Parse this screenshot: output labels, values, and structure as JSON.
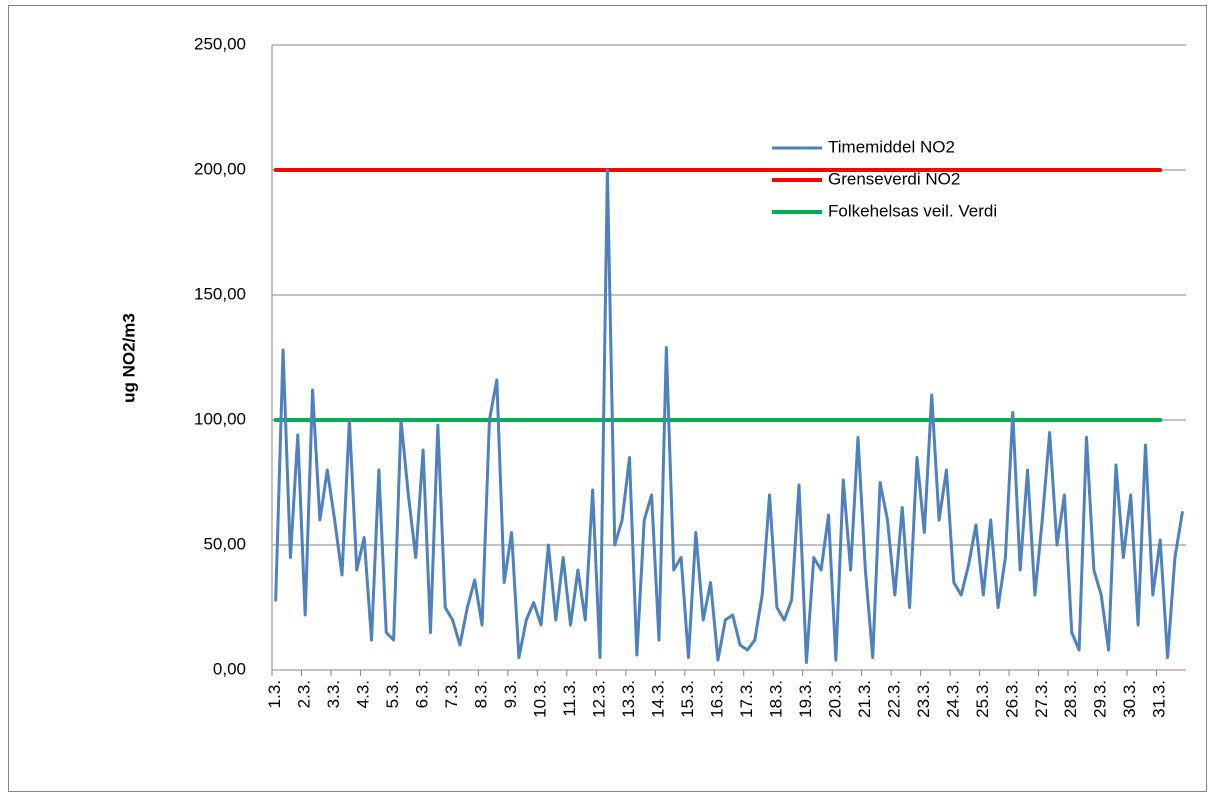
{
  "chart_data": {
    "type": "line",
    "axis_label_y": "ug NO2/m3",
    "categories": [
      "1.3.",
      null,
      null,
      null,
      "2.3.",
      null,
      null,
      null,
      "3.3.",
      null,
      null,
      null,
      "4.3.",
      null,
      null,
      null,
      "5.3.",
      null,
      null,
      null,
      "6.3.",
      null,
      null,
      null,
      "7.3.",
      null,
      null,
      null,
      "8.3.",
      null,
      null,
      null,
      "9.3.",
      null,
      null,
      null,
      "10.3.",
      null,
      null,
      null,
      "11.3.",
      null,
      null,
      null,
      "12.3.",
      null,
      null,
      null,
      "13.3.",
      null,
      null,
      null,
      "14.3.",
      null,
      null,
      null,
      "15.3.",
      null,
      null,
      null,
      "16.3.",
      null,
      null,
      null,
      "17.3.",
      null,
      null,
      null,
      "18.3.",
      null,
      null,
      null,
      "19.3.",
      null,
      null,
      null,
      "20.3.",
      null,
      null,
      null,
      "21.3.",
      null,
      null,
      null,
      "22.3.",
      null,
      null,
      null,
      "23.3.",
      null,
      null,
      null,
      "24.3.",
      null,
      null,
      null,
      "25.3.",
      null,
      null,
      null,
      "26.3.",
      null,
      null,
      null,
      "27.3.",
      null,
      null,
      null,
      "28.3.",
      null,
      null,
      null,
      "29.3.",
      null,
      null,
      null,
      "30.3.",
      null,
      null,
      null,
      "31.3.",
      null,
      null,
      null
    ],
    "series": [
      {
        "name": "Timemiddel NO2",
        "color": "#4f81bd",
        "values": [
          28,
          128,
          45,
          94,
          22,
          112,
          60,
          80,
          60,
          38,
          100,
          40,
          53,
          12,
          80,
          15,
          12,
          100,
          70,
          45,
          88,
          15,
          98,
          25,
          20,
          10,
          25,
          36,
          18,
          100,
          116,
          35,
          55,
          5,
          20,
          27,
          18,
          50,
          20,
          45,
          18,
          40,
          20,
          72,
          5,
          200,
          50,
          60,
          85,
          6,
          60,
          70,
          12,
          129,
          40,
          45,
          5,
          55,
          20,
          35,
          4,
          20,
          22,
          10,
          8,
          12,
          30,
          70,
          25,
          20,
          28,
          74,
          3,
          45,
          40,
          62,
          4,
          76,
          40,
          93,
          40,
          5,
          75,
          60,
          30,
          65,
          25,
          85,
          55,
          110,
          60,
          80,
          35,
          30,
          42,
          58,
          30,
          60,
          25,
          45,
          103,
          40,
          80,
          30,
          60,
          95,
          50,
          70,
          15,
          8,
          93,
          40,
          30,
          8,
          82,
          45,
          70,
          18,
          90,
          30,
          52,
          5,
          45,
          63
        ]
      },
      {
        "name": "Grenseverdi NO2",
        "color": "#ff0000",
        "values": [
          200,
          200,
          200,
          200,
          200,
          200,
          200,
          200,
          200,
          200,
          200,
          200,
          200,
          200,
          200,
          200,
          200,
          200,
          200,
          200,
          200,
          200,
          200,
          200,
          200,
          200,
          200,
          200,
          200,
          200,
          200,
          200,
          200,
          200,
          200,
          200,
          200,
          200,
          200,
          200,
          200,
          200,
          200,
          200,
          200,
          200,
          200,
          200,
          200,
          200,
          200,
          200,
          200,
          200,
          200,
          200,
          200,
          200,
          200,
          200,
          200,
          200,
          200,
          200,
          200,
          200,
          200,
          200,
          200,
          200,
          200,
          200,
          200,
          200,
          200,
          200,
          200,
          200,
          200,
          200,
          200,
          200,
          200,
          200,
          200,
          200,
          200,
          200,
          200,
          200,
          200,
          200,
          200,
          200,
          200,
          200,
          200,
          200,
          200,
          200,
          200,
          200,
          200,
          200,
          200,
          200,
          200,
          200,
          200,
          200,
          200,
          200,
          200,
          200,
          200,
          200,
          200,
          200,
          200,
          200,
          200,
          null,
          null,
          null
        ]
      },
      {
        "name": "Folkehelsas veil. Verdi",
        "color": "#00b050",
        "values": [
          100,
          100,
          100,
          100,
          100,
          100,
          100,
          100,
          100,
          100,
          100,
          100,
          100,
          100,
          100,
          100,
          100,
          100,
          100,
          100,
          100,
          100,
          100,
          100,
          100,
          100,
          100,
          100,
          100,
          100,
          100,
          100,
          100,
          100,
          100,
          100,
          100,
          100,
          100,
          100,
          100,
          100,
          100,
          100,
          100,
          100,
          100,
          100,
          100,
          100,
          100,
          100,
          100,
          100,
          100,
          100,
          100,
          100,
          100,
          100,
          100,
          100,
          100,
          100,
          100,
          100,
          100,
          100,
          100,
          100,
          100,
          100,
          100,
          100,
          100,
          100,
          100,
          100,
          100,
          100,
          100,
          100,
          100,
          100,
          100,
          100,
          100,
          100,
          100,
          100,
          100,
          100,
          100,
          100,
          100,
          100,
          100,
          100,
          100,
          100,
          100,
          100,
          100,
          100,
          100,
          100,
          100,
          100,
          100,
          100,
          100,
          100,
          100,
          100,
          100,
          100,
          100,
          100,
          100,
          100,
          100,
          null,
          null,
          null
        ]
      }
    ],
    "ylim": [
      0,
      250
    ],
    "yticks": [
      {
        "value": 0,
        "label": "0,00"
      },
      {
        "value": 50,
        "label": "50,00"
      },
      {
        "value": 100,
        "label": "100,00"
      },
      {
        "value": 150,
        "label": "150,00"
      },
      {
        "value": 200,
        "label": "200,00"
      },
      {
        "value": 250,
        "label": "250,00"
      }
    ],
    "grid": true,
    "legend": "upper right"
  }
}
